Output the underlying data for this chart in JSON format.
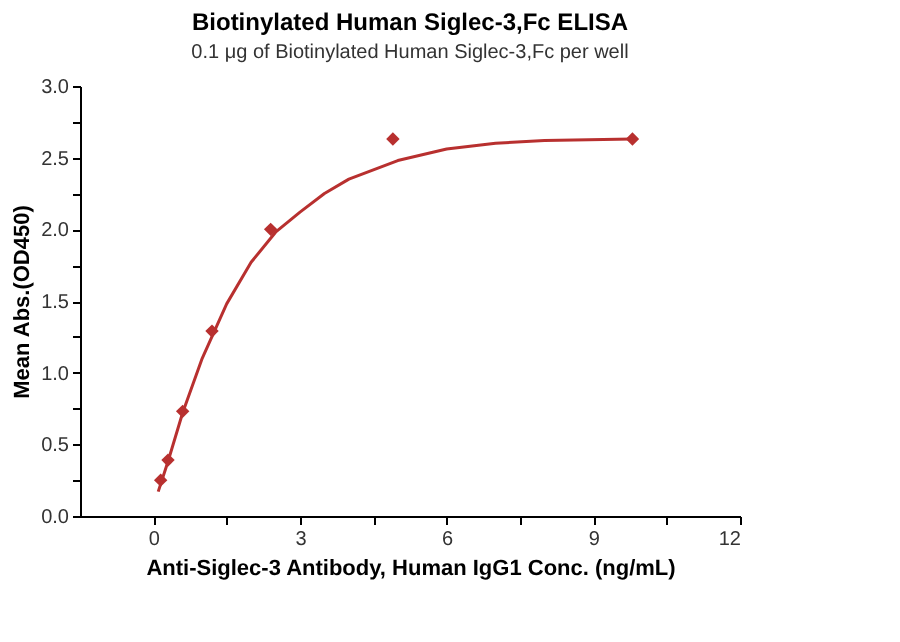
{
  "chart_data": {
    "type": "scatter",
    "title": "Biotinylated Human Siglec-3,Fc ELISA",
    "subtitle": "0.1 μg of Biotinylated Human Siglec-3,Fc per well",
    "xlabel": "Anti-Siglec-3 Antibody, Human IgG1 Conc. (ng/mL)",
    "ylabel": "Mean Abs.(OD450)",
    "series": [
      {
        "marker": "diamond",
        "color": "#b8302f",
        "x": [
          0.15,
          0.3,
          0.6,
          1.2,
          2.4,
          4.9,
          9.8
        ],
        "values": [
          0.25,
          0.39,
          0.73,
          1.29,
          2.0,
          2.63,
          2.63
        ]
      },
      {
        "type": "line",
        "marker": "none",
        "line_style": "solid",
        "color": "#b8302f",
        "x": [
          0.1,
          0.3,
          0.6,
          1.0,
          1.5,
          2.0,
          2.5,
          3.0,
          3.5,
          4.0,
          5.0,
          6.0,
          7.0,
          8.0,
          9.8
        ],
        "values": [
          0.17,
          0.38,
          0.72,
          1.1,
          1.48,
          1.77,
          1.98,
          2.12,
          2.25,
          2.35,
          2.48,
          2.56,
          2.6,
          2.62,
          2.63
        ]
      }
    ],
    "xlim": [
      -1.5,
      12
    ],
    "xticks": [
      0,
      {
        "value": 1.5,
        "label": null
      },
      3,
      {
        "value": 4.5,
        "label": null
      },
      6,
      {
        "value": 7.5,
        "label": null
      },
      9,
      {
        "value": 10.5,
        "label": null
      },
      12
    ],
    "ylim": [
      0,
      3
    ],
    "yticks": [
      {
        "value": 0,
        "label": "0.0"
      },
      {
        "value": 0.25,
        "label": null
      },
      0.5,
      {
        "value": 0.75,
        "label": null
      },
      {
        "value": 1,
        "label": "1.0"
      },
      {
        "value": 1.25,
        "label": null
      },
      1.5,
      {
        "value": 1.75,
        "label": null
      },
      {
        "value": 2,
        "label": "2.0"
      },
      {
        "value": 2.25,
        "label": null
      },
      2.5,
      {
        "value": 2.75,
        "label": null
      },
      {
        "value": 3,
        "label": "3.0"
      }
    ],
    "grid": false
  }
}
